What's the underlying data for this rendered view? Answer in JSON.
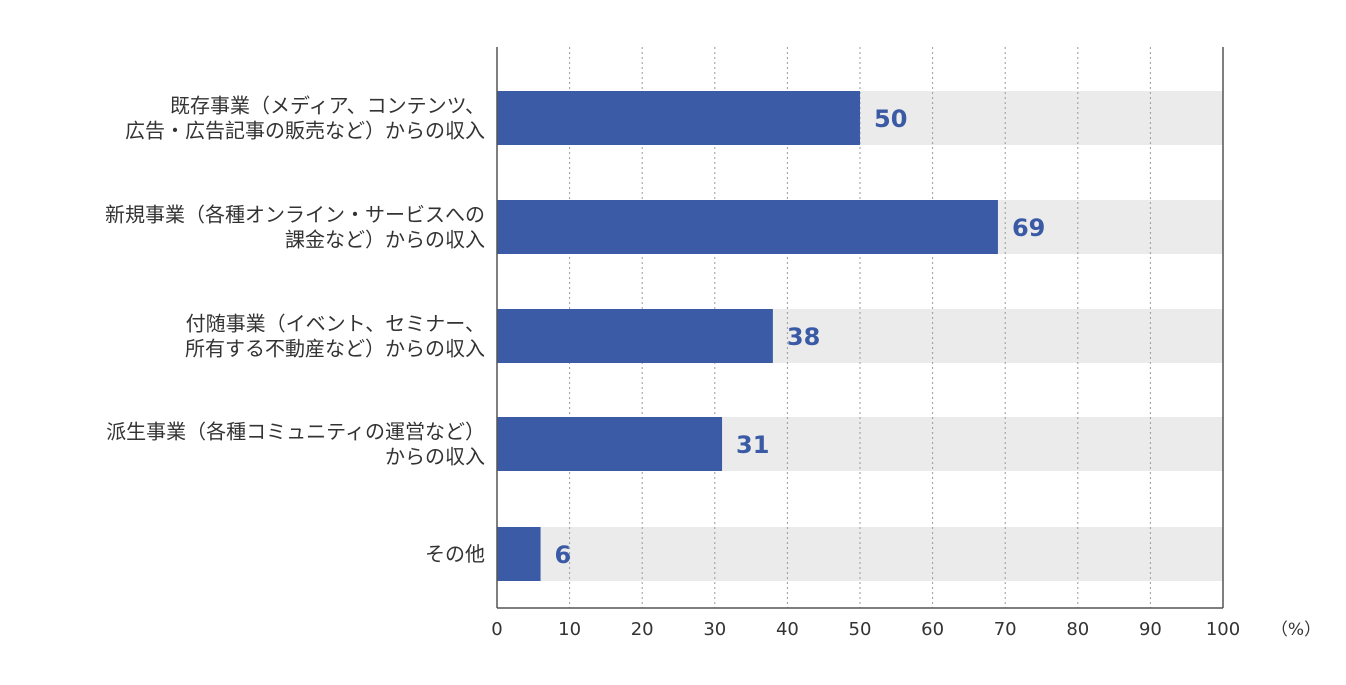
{
  "chart_data": {
    "type": "bar",
    "orientation": "horizontal",
    "categories": [
      [
        "既存事業（メディア、コンテンツ、",
        "広告・広告記事の販売など）からの収入"
      ],
      [
        "新規事業（各種オンライン・サービスへの",
        "課金など）からの収入"
      ],
      [
        "付随事業（イベント、セミナー、",
        "所有する不動産など）からの収入"
      ],
      [
        "派生事業（各種コミュニティの運営など）",
        "からの収入"
      ],
      [
        "その他"
      ]
    ],
    "values": [
      50,
      69,
      38,
      31,
      6
    ],
    "value_labels": [
      "50",
      "69",
      "38",
      "31",
      "6"
    ],
    "xlim": [
      0,
      100
    ],
    "xticks": [
      "0",
      "10",
      "20",
      "30",
      "40",
      "50",
      "60",
      "70",
      "80",
      "90",
      "100"
    ],
    "unit": "（%）",
    "grid": true,
    "colors": {
      "bar": "#3c5ba6",
      "track": "#ebebeb",
      "value_text": "#3b5aa5",
      "axis": "#555555",
      "grid": "#9a9a9a"
    }
  }
}
